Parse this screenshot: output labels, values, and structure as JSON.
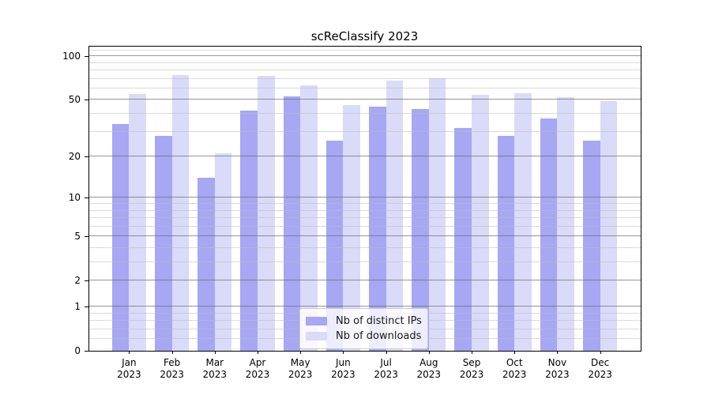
{
  "chart_data": {
    "type": "bar",
    "title": "scReClassify 2023",
    "categories": [
      "Jan",
      "Feb",
      "Mar",
      "Apr",
      "May",
      "Jun",
      "Jul",
      "Aug",
      "Sep",
      "Oct",
      "Nov",
      "Dec"
    ],
    "category_year": "2023",
    "series": [
      {
        "name": "Nb of distinct IPs",
        "color": "#a7a7f3",
        "values": [
          34,
          28,
          14,
          42,
          53,
          26,
          45,
          43,
          32,
          28,
          37,
          26
        ]
      },
      {
        "name": "Nb of downloads",
        "color": "#dadaf9",
        "values": [
          55,
          74,
          21,
          73,
          63,
          46,
          68,
          71,
          54,
          56,
          52,
          49
        ]
      }
    ],
    "xlabel": "",
    "ylabel": "",
    "yscale": "log1p",
    "ylim": [
      0,
      118
    ],
    "y_major_ticks": [
      0,
      1,
      2,
      5,
      10,
      20,
      50,
      100
    ],
    "y_minor_ticks": [
      0.2,
      0.4,
      0.6,
      0.8,
      3,
      4,
      6,
      7,
      8,
      9,
      30,
      40,
      60,
      70,
      80,
      90,
      110
    ],
    "grid": "horizontal",
    "legend_position": "lower center"
  },
  "colors": {
    "bar_ips": "#a7a7f3",
    "bar_downloads": "#dadaf9",
    "grid_major": "#6e6e6e",
    "grid_minor": "#bebebe",
    "spine": "#000000",
    "text": "#000000",
    "legend_border": "#cccccc"
  }
}
